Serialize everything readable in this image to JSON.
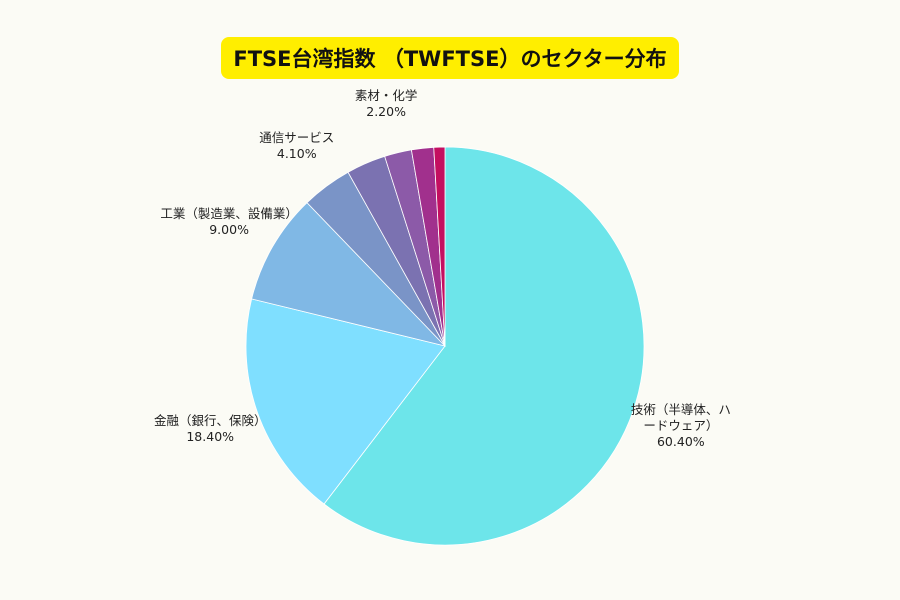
{
  "chart_data": {
    "type": "pie",
    "title": "FTSE台湾指数 （TWFTSE）のセクター分布",
    "start": "top",
    "direction": "clockwise",
    "slices": [
      {
        "label": [
          "技術（半導体、ハ",
          "ードウェア）"
        ],
        "value": 60.4,
        "value_label": "60.40%",
        "color": "#6de5ea"
      },
      {
        "label": [
          "金融（銀行、保険）"
        ],
        "value": 18.4,
        "value_label": "18.40%",
        "color": "#7fdfff"
      },
      {
        "label": [
          "工業（製造業、設備業）"
        ],
        "value": 9.0,
        "value_label": "9.00%",
        "color": "#80b8e5"
      },
      {
        "label": [
          "通信サービス"
        ],
        "value": 4.1,
        "value_label": "4.10%",
        "color": "#7a94c7"
      },
      {
        "label": [],
        "value": 3.2,
        "value_label": "",
        "color": "#7b72b1"
      },
      {
        "label": [
          "素材・化学"
        ],
        "value": 2.2,
        "value_label": "2.20%",
        "color": "#8c5aa8"
      },
      {
        "label": [],
        "value": 1.8,
        "value_label": "",
        "color": "#a1308d"
      },
      {
        "label": [],
        "value": 0.9,
        "value_label": "",
        "color": "#c40f60"
      }
    ]
  }
}
